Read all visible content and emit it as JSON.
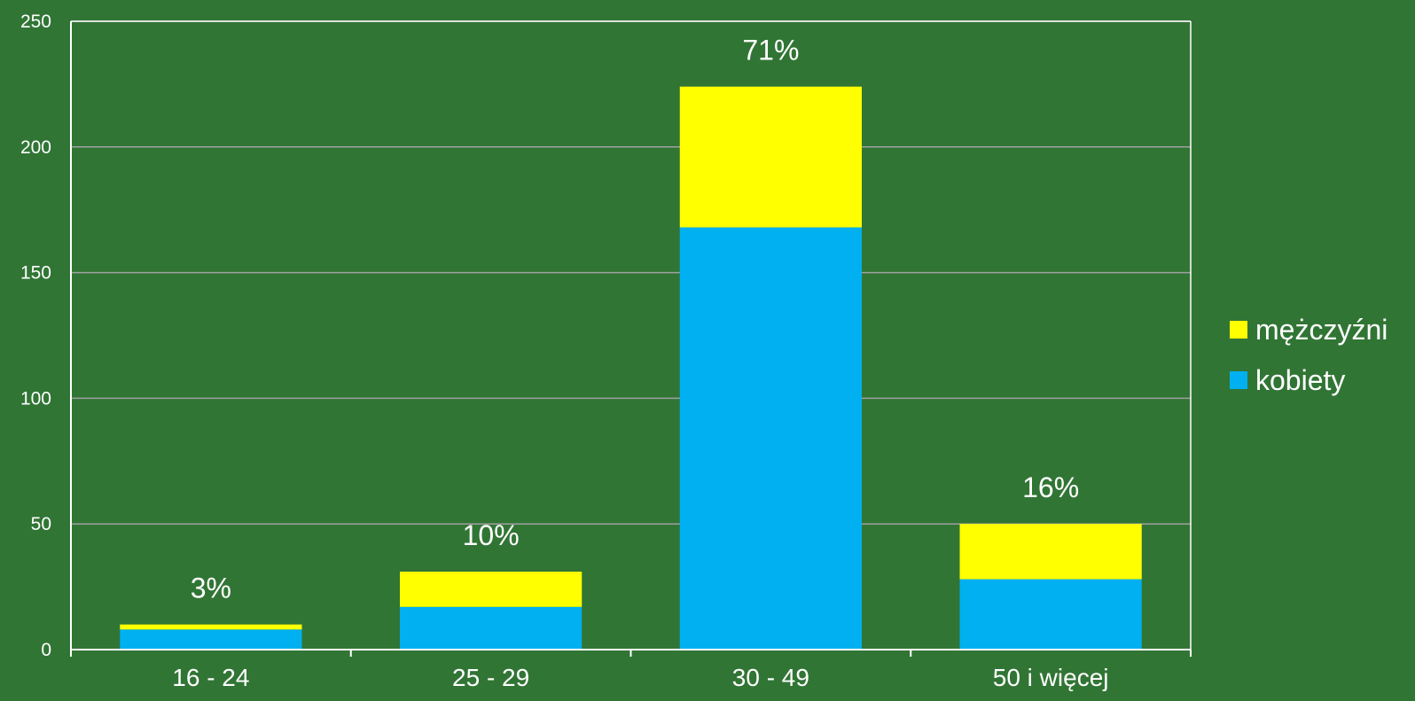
{
  "chart_data": {
    "type": "bar",
    "stacked": true,
    "categories": [
      "16 - 24",
      "25 - 29",
      "30 - 49",
      "50 i więcej"
    ],
    "series": [
      {
        "name": "kobiety",
        "values": [
          8,
          17,
          168,
          28
        ],
        "color": "#00b0f0"
      },
      {
        "name": "mężczyźni",
        "values": [
          2,
          14,
          56,
          22
        ],
        "color": "#ffff00"
      }
    ],
    "data_labels": [
      "3%",
      "10%",
      "71%",
      "16%"
    ],
    "yticks": [
      "0",
      "50",
      "100",
      "150",
      "200",
      "250"
    ],
    "ylim": [
      0,
      250
    ],
    "grid": true,
    "legend": "right",
    "legend_order": [
      "mężczyźni",
      "kobiety"
    ],
    "title": "",
    "xlabel": "",
    "ylabel": "",
    "background_color": "#317535",
    "grid_color": "#a0a0a0"
  }
}
